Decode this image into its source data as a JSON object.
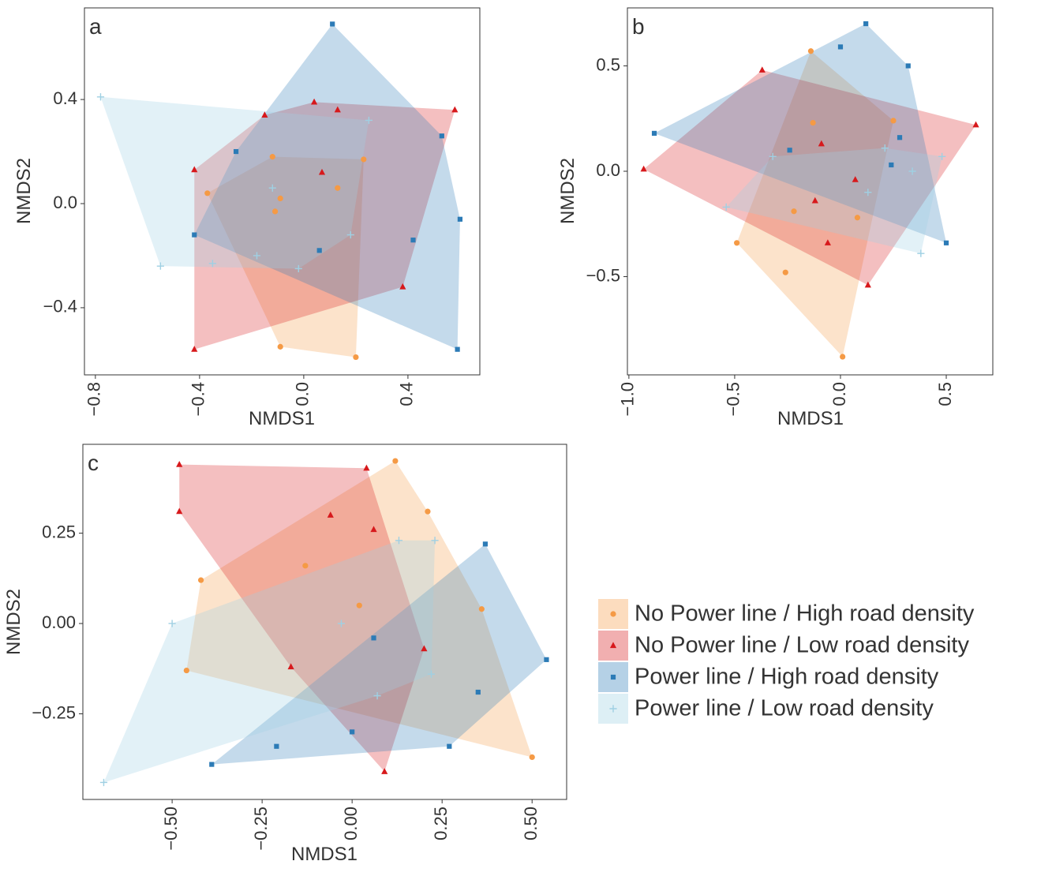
{
  "chart_data": [
    {
      "type": "scatter",
      "label": "a",
      "x_label": "NMDS1",
      "y_label": "NMDS2",
      "xlim": [
        -0.842,
        0.676
      ],
      "ylim": [
        -0.658,
        0.752
      ],
      "xticks": [
        {
          "value": -0.8,
          "label": "−0.8"
        },
        {
          "value": -0.4,
          "label": "−0.4"
        },
        {
          "value": 0,
          "label": "0.0"
        },
        0.4
      ],
      "yticks": [
        {
          "value": -0.4,
          "label": "−0.4"
        },
        {
          "value": 0,
          "label": "0.0"
        },
        0.4
      ],
      "series": [
        {
          "name": "No Power line / High road density",
          "color": "#f59a45",
          "shape": "circle",
          "x": [
            -0.37,
            -0.12,
            -0.09,
            -0.11,
            0.13,
            0.23,
            -0.09,
            0.2
          ],
          "y": [
            0.04,
            0.18,
            0.02,
            -0.03,
            0.06,
            0.17,
            -0.55,
            -0.59
          ]
        },
        {
          "name": "No Power line / Low road density",
          "color": "#d7191c",
          "shape": "triangle",
          "x": [
            -0.42,
            -0.15,
            0.04,
            0.13,
            0.58,
            0.07,
            0.38,
            -0.42
          ],
          "y": [
            0.13,
            0.34,
            0.39,
            0.36,
            0.36,
            0.12,
            -0.32,
            -0.56
          ]
        },
        {
          "name": "Power line / High road density",
          "color": "#2c7bb6",
          "shape": "square",
          "x": [
            0.11,
            -0.26,
            0.53,
            0.6,
            0.42,
            -0.42,
            0.06,
            0.59
          ],
          "y": [
            0.69,
            0.2,
            0.26,
            -0.06,
            -0.14,
            -0.12,
            -0.18,
            -0.56
          ]
        },
        {
          "name": "Power line / Low road density",
          "color": "#9fd0e3",
          "shape": "plus",
          "x": [
            -0.78,
            0.25,
            -0.12,
            0.18,
            -0.18,
            -0.35,
            -0.55,
            -0.02
          ],
          "y": [
            0.41,
            0.32,
            0.06,
            -0.12,
            -0.2,
            -0.23,
            -0.24,
            -0.25
          ]
        }
      ]
    },
    {
      "type": "scatter",
      "label": "b",
      "x_label": "NMDS1",
      "y_label": "NMDS2",
      "xlim": [
        -1.007,
        0.72
      ],
      "ylim": [
        -0.966,
        0.775
      ],
      "xticks": [
        {
          "value": -1,
          "label": "−1.0"
        },
        {
          "value": -0.5,
          "label": "−0.5"
        },
        {
          "value": 0,
          "label": "0.0"
        },
        0.5
      ],
      "yticks": [
        {
          "value": -0.5,
          "label": "−0.5"
        },
        {
          "value": 0,
          "label": "0.0"
        },
        0.5
      ],
      "series": [
        {
          "name": "No Power line / High road density",
          "color": "#f59a45",
          "shape": "circle",
          "x": [
            -0.14,
            -0.13,
            -0.49,
            -0.22,
            0.08,
            0.25,
            -0.26,
            0.01
          ],
          "y": [
            0.57,
            0.23,
            -0.34,
            -0.19,
            -0.22,
            0.24,
            -0.48,
            -0.88
          ]
        },
        {
          "name": "No Power line / Low road density",
          "color": "#d7191c",
          "shape": "triangle",
          "x": [
            -0.37,
            -0.93,
            -0.09,
            0.07,
            -0.12,
            -0.06,
            0.13,
            0.64
          ],
          "y": [
            0.48,
            0.01,
            0.13,
            -0.04,
            -0.14,
            -0.34,
            -0.54,
            0.22
          ]
        },
        {
          "name": "Power line / High road density",
          "color": "#2c7bb6",
          "shape": "square",
          "x": [
            0.12,
            0,
            0.32,
            -0.88,
            -0.24,
            0.28,
            0.24,
            0.5
          ],
          "y": [
            0.7,
            0.59,
            0.5,
            0.18,
            0.1,
            0.16,
            0.03,
            -0.34
          ]
        },
        {
          "name": "Power line / Low road density",
          "color": "#9fd0e3",
          "shape": "plus",
          "x": [
            0.21,
            0.48,
            0.34,
            0.13,
            0.38,
            -0.54,
            -0.32
          ],
          "y": [
            0.11,
            0.07,
            0,
            -0.1,
            -0.39,
            -0.17,
            0.07
          ]
        }
      ]
    },
    {
      "type": "scatter",
      "label": "c",
      "x_label": "NMDS1",
      "y_label": "NMDS2",
      "legend": "right",
      "xlim": [
        -0.748,
        0.596
      ],
      "ylim": [
        -0.487,
        0.496
      ],
      "xticks": [
        {
          "value": -0.5,
          "label": "−0.50"
        },
        {
          "value": -0.25,
          "label": "−0.25"
        },
        {
          "value": 0,
          "label": "0.00"
        },
        0.25,
        {
          "value": 0.5,
          "label": "0.50"
        }
      ],
      "yticks": [
        {
          "value": -0.25,
          "label": "−0.25"
        },
        {
          "value": 0,
          "label": "0.00"
        },
        0.25
      ],
      "series": [
        {
          "name": "No Power line / High road density",
          "color": "#f59a45",
          "shape": "circle",
          "x": [
            0.12,
            0.21,
            -0.42,
            -0.13,
            0.02,
            0.36,
            -0.46,
            0.5
          ],
          "y": [
            0.45,
            0.31,
            0.12,
            0.16,
            0.05,
            0.04,
            -0.13,
            -0.37
          ]
        },
        {
          "name": "No Power line / Low road density",
          "color": "#d7191c",
          "shape": "triangle",
          "x": [
            -0.48,
            0.04,
            -0.48,
            -0.06,
            0.06,
            0.2,
            -0.17,
            0.09
          ],
          "y": [
            0.44,
            0.43,
            0.31,
            0.3,
            0.26,
            -0.07,
            -0.12,
            -0.41
          ]
        },
        {
          "name": "Power line / High road density",
          "color": "#2c7bb6",
          "shape": "square",
          "x": [
            0.37,
            0.06,
            0.54,
            0.35,
            0,
            -0.21,
            0.27,
            -0.39
          ],
          "y": [
            0.22,
            -0.04,
            -0.1,
            -0.19,
            -0.3,
            -0.34,
            -0.34,
            -0.39
          ]
        },
        {
          "name": "Power line / Low road density",
          "color": "#9fd0e3",
          "shape": "plus",
          "x": [
            0.13,
            0.23,
            -0.5,
            -0.03,
            0.07,
            -0.69,
            0.22
          ],
          "y": [
            0.23,
            0.23,
            0,
            0,
            -0.2,
            -0.44,
            -0.14
          ]
        }
      ]
    }
  ]
}
